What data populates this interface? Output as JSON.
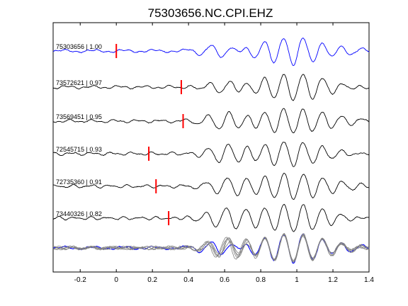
{
  "chart_data": {
    "type": "line",
    "title": "75303656.NC.CPI.EHZ",
    "xlabel": "",
    "ylabel": "",
    "xlim": [
      -0.35,
      1.4
    ],
    "xticks": [
      -0.2,
      0,
      0.2,
      0.4,
      0.6,
      0.8,
      1.0,
      1.2,
      1.4
    ],
    "xtick_labels": [
      "-0.2",
      "0",
      "0.2",
      "0.4",
      "0.6",
      "0.8",
      "1",
      "1.2",
      "1.4"
    ],
    "grid": false,
    "legend": "none",
    "colors": {
      "reference": "#0000ff",
      "trace": "#000000",
      "pick": "#ff0000",
      "stack": "#808080"
    },
    "series": [
      {
        "name": "75303656 | 1.00",
        "color": "#0000ff",
        "pick_time": 0.0
      },
      {
        "name": "73572621 | 0.97",
        "color": "#000000",
        "pick_time": 0.36
      },
      {
        "name": "73569451 | 0.95",
        "color": "#000000",
        "pick_time": 0.37
      },
      {
        "name": "72545715 | 0.93",
        "color": "#000000",
        "pick_time": 0.18
      },
      {
        "name": "72735360 | 0.91",
        "color": "#000000",
        "pick_time": 0.22
      },
      {
        "name": "73440326 | 0.82",
        "color": "#000000",
        "pick_time": 0.29
      }
    ],
    "overlay": {
      "label": "",
      "description_visible": false
    }
  }
}
